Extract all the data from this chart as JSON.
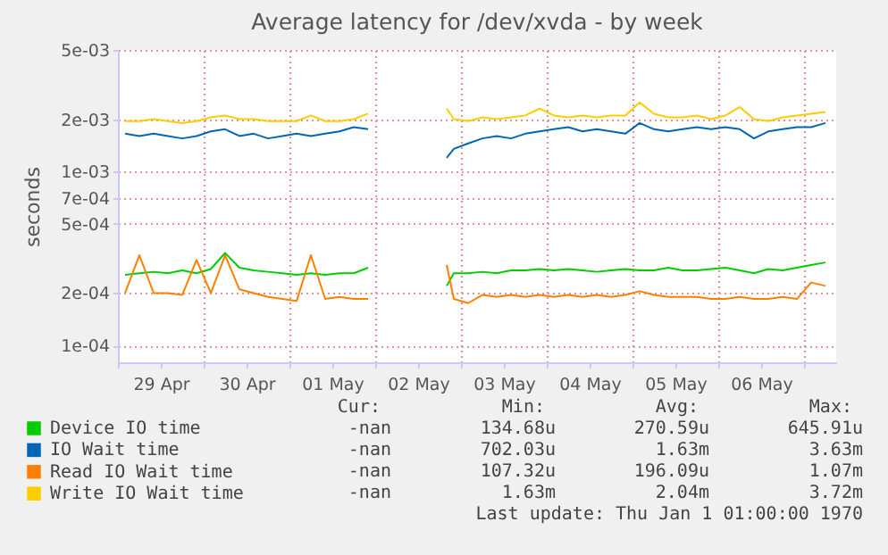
{
  "chart_data": {
    "type": "line",
    "title": "Average latency for /dev/xvda - by week",
    "ylabel": "seconds",
    "log": "y",
    "x": [
      "--04-29T02:00",
      "--04-29T06:00",
      "--04-29T10:00",
      "--04-29T14:00",
      "--04-29T18:00",
      "--04-29T22:00",
      "--04-30T02:00",
      "--04-30T06:00",
      "--04-30T10:00",
      "--04-30T14:00",
      "--04-30T18:00",
      "--04-30T22:00",
      "--05-01T02:00",
      "--05-01T06:00",
      "--05-01T10:00",
      "--05-01T14:00",
      "--05-01T18:00",
      "--05-01T22:00",
      "--05-02T10:00",
      "--05-02T20:00",
      "--05-02T22:00",
      "--05-03T02:00",
      "--05-03T06:00",
      "--05-03T10:00",
      "--05-03T14:00",
      "--05-03T18:00",
      "--05-03T22:00",
      "--05-04T02:00",
      "--05-04T06:00",
      "--05-04T10:00",
      "--05-04T14:00",
      "--05-04T18:00",
      "--05-04T22:00",
      "--05-05T02:00",
      "--05-05T06:00",
      "--05-05T10:00",
      "--05-05T14:00",
      "--05-05T18:00",
      "--05-05T22:00",
      "--05-06T02:00",
      "--05-06T06:00",
      "--05-06T10:00",
      "--05-06T14:00",
      "--05-06T18:00",
      "--05-06T22:00",
      "--05-07T02:00",
      "--05-07T06:00"
    ],
    "series": [
      {
        "name": "Device IO time",
        "color": "#00cc00",
        "values": [
          0.000255,
          0.00026,
          0.000265,
          0.00026,
          0.00027,
          0.00026,
          0.000275,
          0.00034,
          0.00028,
          0.00027,
          0.000265,
          0.00026,
          0.000255,
          0.00026,
          0.000255,
          0.00026,
          0.00026,
          0.00028,
          null,
          0.00022,
          0.00026,
          0.00026,
          0.000265,
          0.00026,
          0.00027,
          0.00027,
          0.000275,
          0.00027,
          0.000275,
          0.00027,
          0.000265,
          0.00027,
          0.000275,
          0.00027,
          0.00027,
          0.00028,
          0.00027,
          0.00027,
          0.000275,
          0.00028,
          0.00027,
          0.00026,
          0.000275,
          0.00027,
          0.00028,
          0.00029,
          0.0003
        ]
      },
      {
        "name": "IO Wait time",
        "color": "#0066b3",
        "values": [
          0.00165,
          0.0016,
          0.00165,
          0.0016,
          0.00155,
          0.0016,
          0.0017,
          0.00175,
          0.0016,
          0.00165,
          0.00155,
          0.0016,
          0.00165,
          0.0016,
          0.00165,
          0.0017,
          0.0018,
          0.00175,
          null,
          0.0012,
          0.00135,
          0.00145,
          0.00155,
          0.0016,
          0.00155,
          0.00165,
          0.0017,
          0.00175,
          0.0018,
          0.0017,
          0.00175,
          0.0017,
          0.00165,
          0.0019,
          0.00175,
          0.0017,
          0.00175,
          0.0018,
          0.00175,
          0.0018,
          0.00175,
          0.00155,
          0.0017,
          0.00175,
          0.0018,
          0.0018,
          0.0019
        ]
      },
      {
        "name": "Read IO Wait time",
        "color": "#ff8000",
        "values": [
          0.0002,
          0.00033,
          0.0002,
          0.0002,
          0.000195,
          0.00031,
          0.0002,
          0.00033,
          0.00021,
          0.0002,
          0.00019,
          0.000185,
          0.00018,
          0.00033,
          0.000185,
          0.00019,
          0.000185,
          0.000185,
          null,
          0.00029,
          0.000185,
          0.000175,
          0.000195,
          0.00019,
          0.000195,
          0.00019,
          0.000195,
          0.00019,
          0.000195,
          0.00019,
          0.000195,
          0.00019,
          0.000195,
          0.000205,
          0.000195,
          0.00019,
          0.00019,
          0.00019,
          0.000185,
          0.000185,
          0.00019,
          0.000185,
          0.000185,
          0.00019,
          0.000185,
          0.00023,
          0.00022
        ]
      },
      {
        "name": "Write IO Wait time",
        "color": "#ffcc00",
        "values": [
          0.00195,
          0.00195,
          0.002,
          0.00195,
          0.0019,
          0.00195,
          0.00205,
          0.0021,
          0.002,
          0.002,
          0.00195,
          0.00195,
          0.00195,
          0.0021,
          0.00195,
          0.00195,
          0.002,
          0.00215,
          null,
          0.0023,
          0.002,
          0.00195,
          0.00205,
          0.002,
          0.00205,
          0.0021,
          0.0023,
          0.0021,
          0.00205,
          0.0021,
          0.00205,
          0.0021,
          0.0021,
          0.0025,
          0.00215,
          0.00205,
          0.00205,
          0.0021,
          0.002,
          0.0021,
          0.00235,
          0.002,
          0.00195,
          0.00205,
          0.0021,
          0.00215,
          0.0022
        ]
      }
    ],
    "xlim": [
      "--04-29T00:00",
      "--05-07T09:00"
    ],
    "xticks": [
      {
        "value": "--04-29T00:00",
        "label": null
      },
      {
        "value": "--04-29T12:00",
        "label": "29 Apr"
      },
      {
        "value": "--04-30T00:00",
        "label": null
      },
      {
        "value": "--04-30T12:00",
        "label": "30 Apr"
      },
      {
        "value": "--05-01T00:00",
        "label": null
      },
      {
        "value": "--05-01T12:00",
        "label": "01 May"
      },
      {
        "value": "--05-02T00:00",
        "label": null
      },
      {
        "value": "--05-02T12:00",
        "label": "02 May"
      },
      {
        "value": "--05-03T00:00",
        "label": null
      },
      {
        "value": "--05-03T12:00",
        "label": "03 May"
      },
      {
        "value": "--05-04T00:00",
        "label": null
      },
      {
        "value": "--05-04T12:00",
        "label": "04 May"
      },
      {
        "value": "--05-05T00:00",
        "label": null
      },
      {
        "value": "--05-05T12:00",
        "label": "05 May"
      },
      {
        "value": "--05-06T00:00",
        "label": null
      },
      {
        "value": "--05-06T12:00",
        "label": "06 May"
      },
      {
        "value": "--05-07T00:00",
        "label": null
      }
    ],
    "ylim": [
      8e-05,
      0.005
    ],
    "yticks": [
      {
        "value": 0.0001,
        "label": "1e-04"
      },
      {
        "value": 0.0002,
        "label": "2e-04"
      },
      {
        "value": 0.0005,
        "label": "5e-04"
      },
      {
        "value": 0.0007,
        "label": "7e-04"
      },
      {
        "value": 0.001,
        "label": "1e-03"
      },
      {
        "value": 0.002,
        "label": "2e-03"
      },
      {
        "value": 0.005,
        "label": "5e-03"
      }
    ],
    "grid": true,
    "legend": "bottom",
    "annotations": [
      "Cur:",
      "Min:",
      "Avg:",
      "Max:",
      "-nan",
      "134.68u",
      "270.59u",
      "645.91u",
      "-nan",
      "702.03u",
      "1.63m",
      "3.63m",
      "-nan",
      "107.32u",
      "196.09u",
      "1.07m",
      "-nan",
      "1.63m",
      "2.04m",
      "3.72m",
      "Last update: Thu Jan  1 01:00:00 1970"
    ]
  }
}
